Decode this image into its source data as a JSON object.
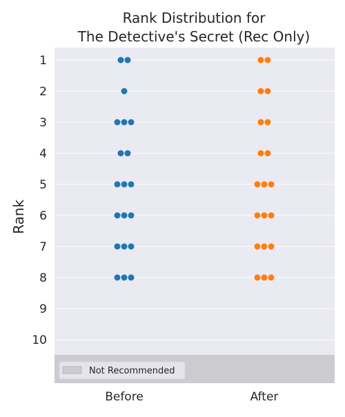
{
  "chart_data": {
    "type": "scatter",
    "title_lines": [
      "Rank Distribution for",
      "The Detective's Secret (Rec Only)"
    ],
    "ylabel": "Rank",
    "categories": [
      "Before",
      "After"
    ],
    "y_ticks": [
      "1",
      "2",
      "3",
      "4",
      "5",
      "6",
      "7",
      "8",
      "9",
      "10"
    ],
    "y_inverted": true,
    "grid": true,
    "legend": {
      "label": "Not Recommended",
      "placement": "bottom-left"
    },
    "colors": {
      "before": "#1f77b4",
      "after": "#ff7f0e",
      "plot_bg": "#eaeaf2",
      "not_recommended_band": "#cbcbd0",
      "grid": "#ffffff"
    },
    "series": [
      {
        "category": "Before",
        "counts": [
          {
            "rank": 1,
            "count": 2
          },
          {
            "rank": 2,
            "count": 1
          },
          {
            "rank": 3,
            "count": 3
          },
          {
            "rank": 4,
            "count": 2
          },
          {
            "rank": 5,
            "count": 3
          },
          {
            "rank": 6,
            "count": 3
          },
          {
            "rank": 7,
            "count": 3
          },
          {
            "rank": 8,
            "count": 3
          }
        ]
      },
      {
        "category": "After",
        "counts": [
          {
            "rank": 1,
            "count": 2
          },
          {
            "rank": 2,
            "count": 2
          },
          {
            "rank": 3,
            "count": 2
          },
          {
            "rank": 4,
            "count": 2
          },
          {
            "rank": 5,
            "count": 3
          },
          {
            "rank": 6,
            "count": 3
          },
          {
            "rank": 7,
            "count": 3
          },
          {
            "rank": 8,
            "count": 3
          }
        ]
      }
    ]
  }
}
